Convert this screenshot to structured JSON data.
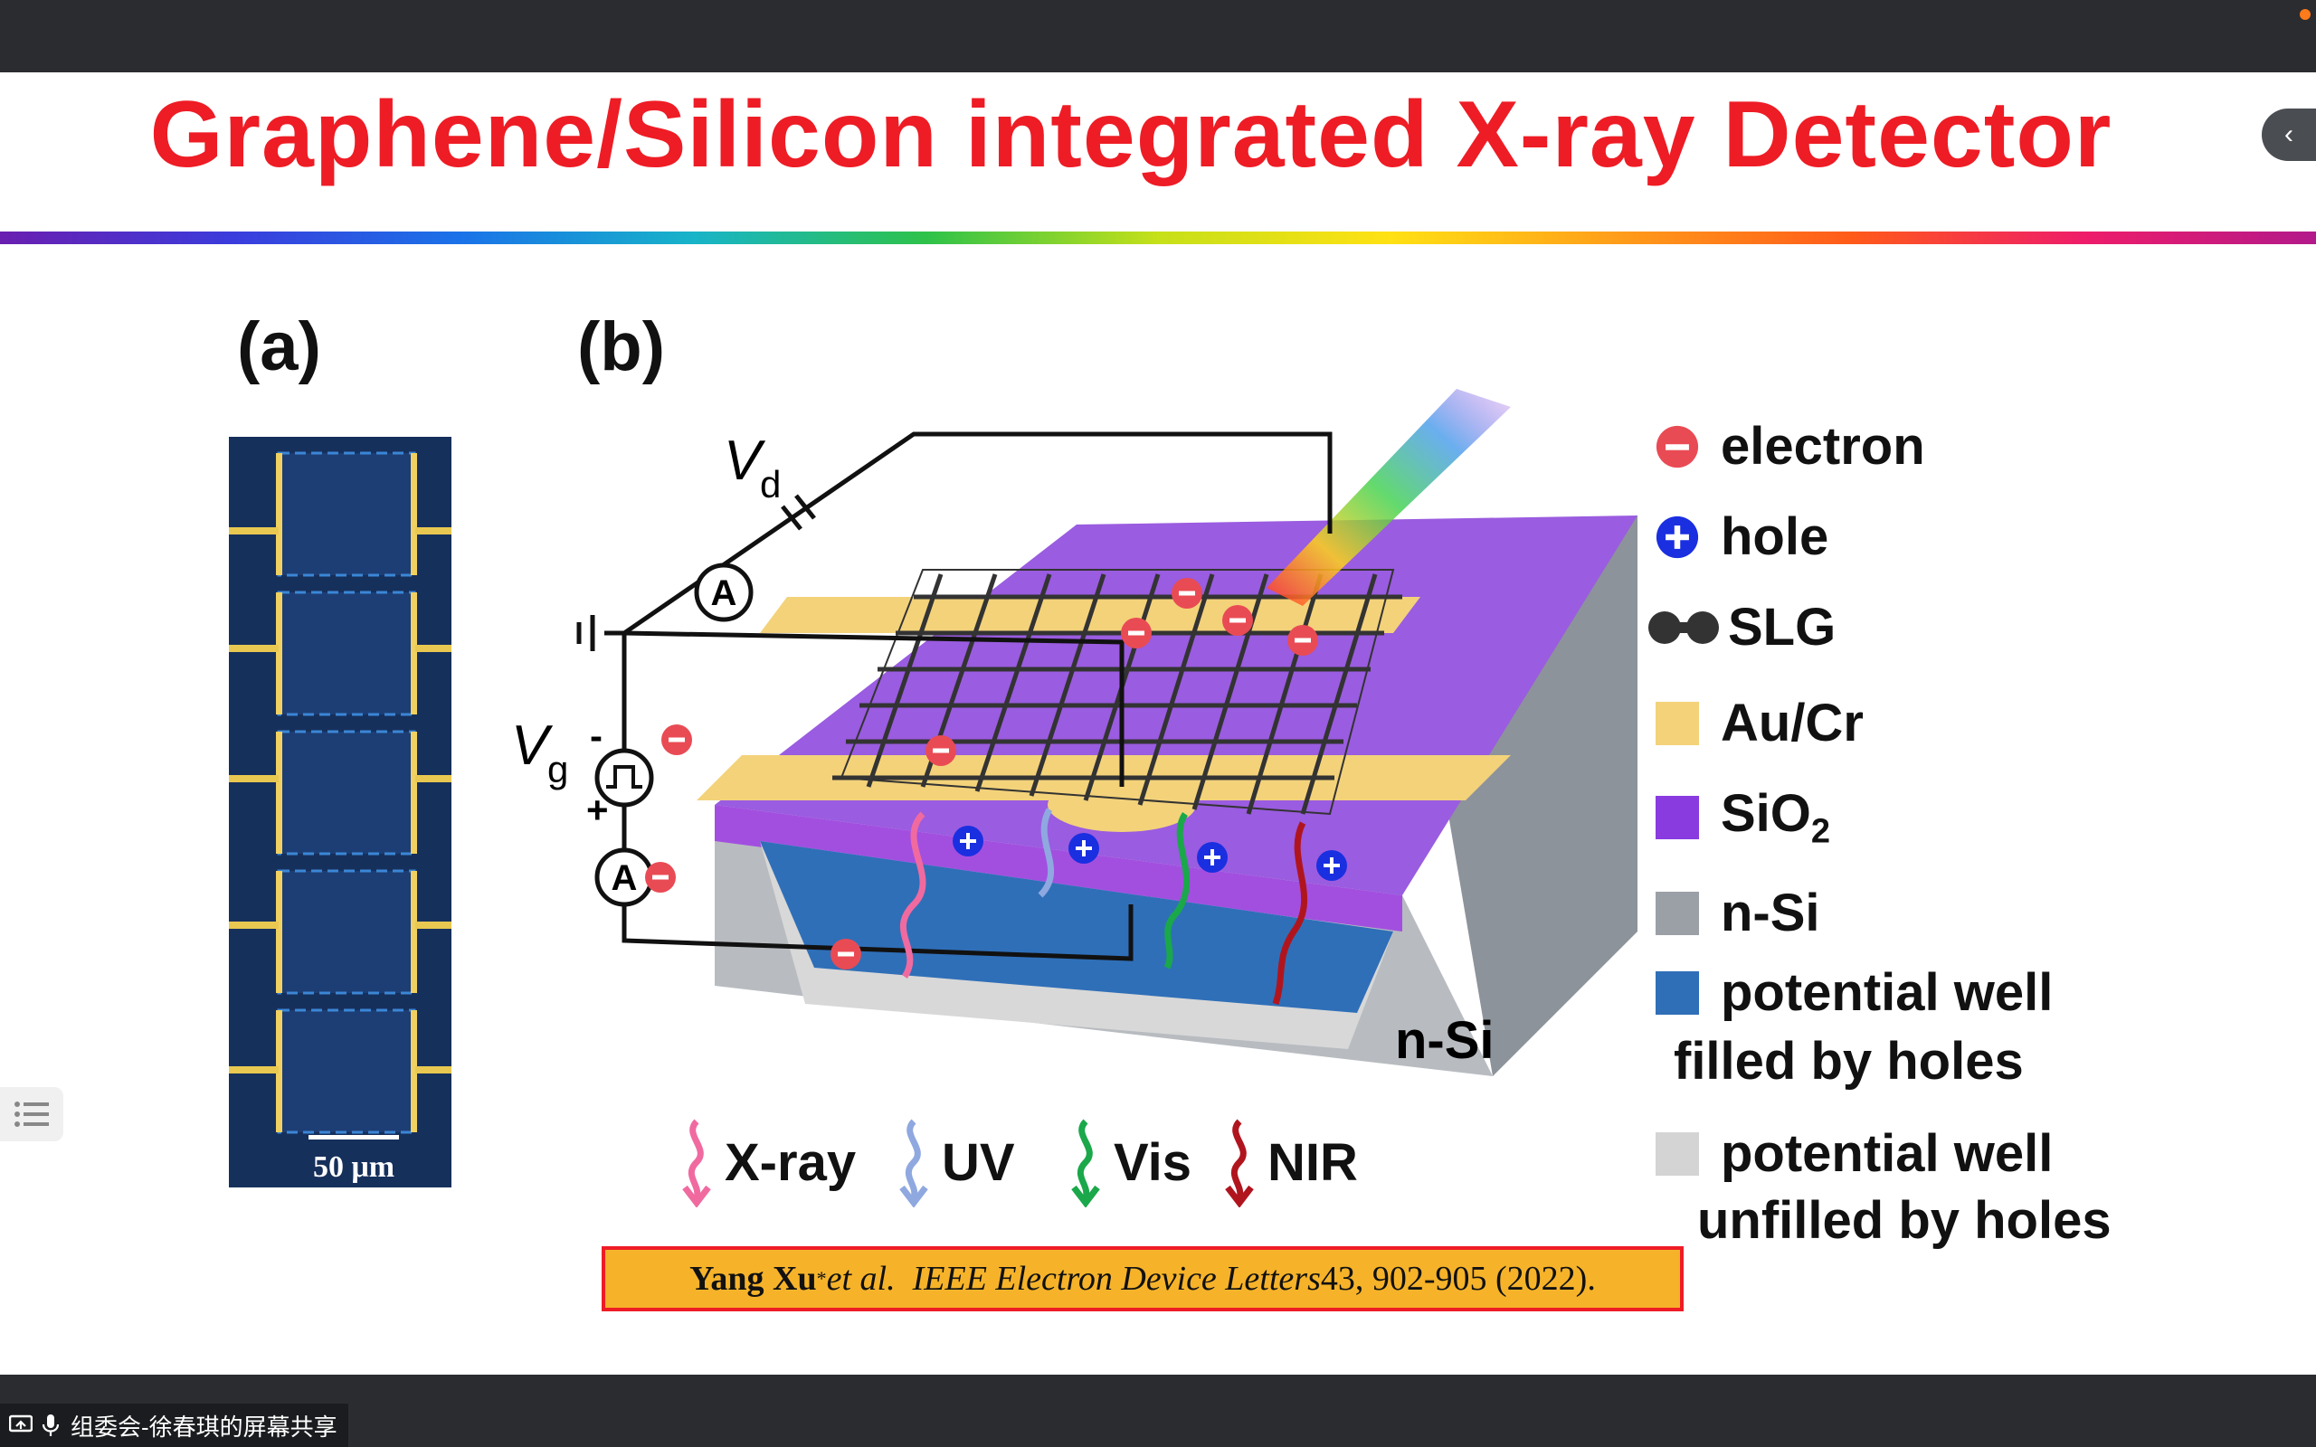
{
  "slide": {
    "title": "Graphene/Silicon integrated X-ray Detector",
    "panel_a_label": "(a)",
    "panel_b_label": "(b)",
    "scale_bar": "50 μm"
  },
  "diagram": {
    "vd_symbol": "V",
    "vd_sub": "d",
    "vg_symbol": "V",
    "vg_sub": "g",
    "vg_minus": "-",
    "vg_plus": "+",
    "ammeter": "A",
    "nsi_label": "n-Si"
  },
  "legend": {
    "items": [
      {
        "label": "electron",
        "color": "#e94b54"
      },
      {
        "label": "hole",
        "color": "#1a2fe0"
      },
      {
        "label": "SLG",
        "color": "#333333"
      },
      {
        "label": "Au/Cr",
        "color": "#f3d27a"
      },
      {
        "label": "SiO",
        "sub": "2",
        "color": "#8a3be0"
      },
      {
        "label": "n-Si",
        "color": "#9aa0a6"
      },
      {
        "label": "potential well",
        "label2": "filled by holes",
        "color": "#2f6fb8"
      },
      {
        "label": "potential well",
        "label2": "unfilled by holes",
        "color": "#d4d4d4"
      }
    ]
  },
  "wave_legend": [
    {
      "label": "X-ray",
      "color": "#f06aa0"
    },
    {
      "label": "UV",
      "color": "#8fa8e0"
    },
    {
      "label": "Vis",
      "color": "#1aa84a"
    },
    {
      "label": "NIR",
      "color": "#b0151e"
    }
  ],
  "citation": {
    "author": "Yang Xu",
    "star": "*",
    "etal": " et al.",
    "journal": "IEEE Electron Device Letters",
    "rest": " 43, 902-905 (2022)."
  },
  "screen_share": {
    "label": "组委会-徐春琪的屏幕共享"
  },
  "colors": {
    "title": "#ee1c25",
    "citation_bg": "#f6b32a"
  }
}
